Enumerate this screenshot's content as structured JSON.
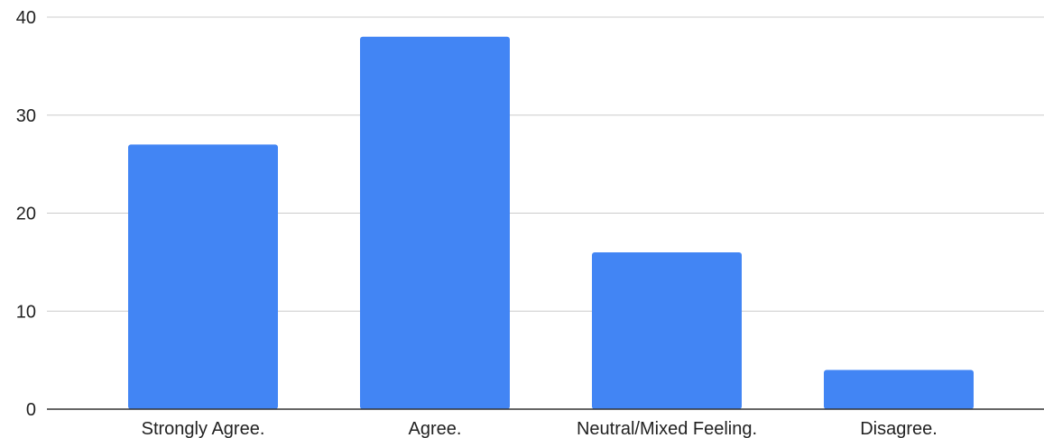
{
  "chart_data": {
    "type": "bar",
    "categories": [
      "Strongly Agree.",
      "Agree.",
      "Neutral/Mixed Feeling.",
      "Disagree."
    ],
    "series": [
      {
        "values": [
          27,
          38,
          16,
          4
        ],
        "color": "#4285f4"
      }
    ],
    "ylim": [
      0,
      40
    ],
    "yticks": [
      0,
      10,
      20,
      30,
      40
    ],
    "grid": true,
    "legend": "none"
  }
}
